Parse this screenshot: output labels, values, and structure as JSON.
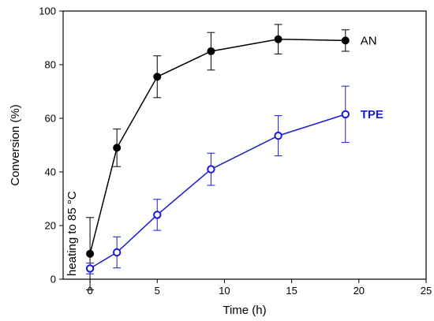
{
  "chart_data": {
    "type": "line",
    "title": "",
    "xlabel": "Time (h)",
    "ylabel": "Conversion (%)",
    "xlim": [
      -2,
      25
    ],
    "ylim": [
      0,
      100
    ],
    "xticks": [
      0,
      5,
      10,
      15,
      20,
      25
    ],
    "yticks": [
      0,
      20,
      40,
      60,
      80,
      100
    ],
    "grid": false,
    "annotation": "heating to 85 °C",
    "series": [
      {
        "name": "AN",
        "color": "#000000",
        "marker": "filled-circle",
        "x": [
          0,
          2,
          5,
          9,
          14,
          19
        ],
        "y": [
          9.5,
          49,
          75.5,
          85,
          89.5,
          89
        ],
        "error": [
          13.5,
          7,
          7.8,
          7,
          5.5,
          4
        ]
      },
      {
        "name": "TPE",
        "color": "#1a1ad6",
        "marker": "open-circle",
        "x": [
          0,
          2,
          5,
          9,
          14,
          19
        ],
        "y": [
          4,
          10,
          24,
          41,
          53.5,
          61.5
        ],
        "error": [
          2,
          5.8,
          5.8,
          6,
          7.5,
          10.5
        ]
      }
    ]
  }
}
